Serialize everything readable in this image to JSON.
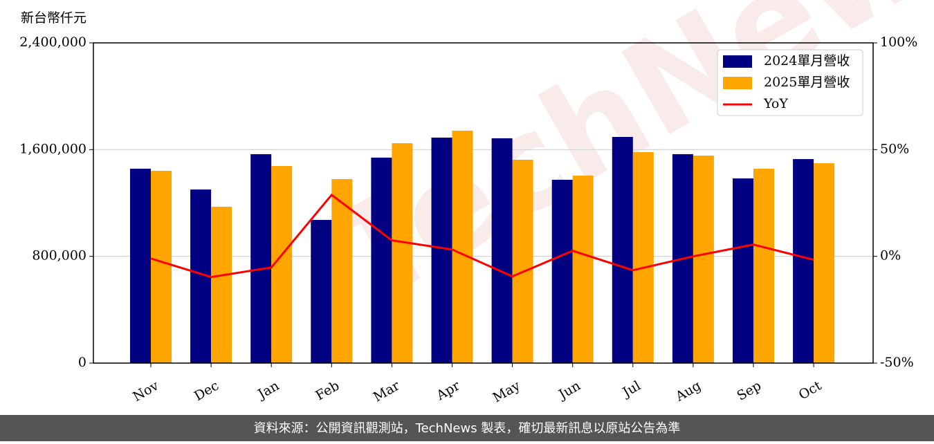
{
  "chart_data": {
    "type": "bar-line",
    "y_label": "新台幣仟元",
    "categories": [
      "Nov",
      "Dec",
      "Jan",
      "Feb",
      "Mar",
      "Apr",
      "May",
      "Jun",
      "Jul",
      "Aug",
      "Sep",
      "Oct"
    ],
    "series": [
      {
        "name": "2024單月營收",
        "color": "#000080",
        "type": "bar",
        "values": [
          1457000,
          1301000,
          1566000,
          1073000,
          1540000,
          1690000,
          1685000,
          1374000,
          1695000,
          1566000,
          1384000,
          1529000
        ]
      },
      {
        "name": "2025單月營收",
        "color": "#ffa500",
        "type": "bar",
        "values": [
          1441000,
          1172000,
          1477000,
          1379000,
          1648000,
          1742000,
          1524000,
          1405000,
          1581000,
          1555000,
          1457000,
          1498000
        ]
      },
      {
        "name": "YoY",
        "color": "#ff0000",
        "type": "line",
        "axis": "y2",
        "values": [
          -1.0,
          -9.7,
          -5.2,
          28.8,
          7.5,
          3.2,
          -9.4,
          2.6,
          -6.5,
          0,
          5.5,
          -1.6
        ]
      }
    ],
    "ylim": [
      0,
      2400000
    ],
    "yticks": [
      0,
      {
        "value": 800000,
        "label": "800,000"
      },
      {
        "value": 1600000,
        "label": "1,600,000"
      },
      {
        "value": 2400000,
        "label": "2,400,000"
      }
    ],
    "y2lim": [
      -50,
      100
    ],
    "y2ticks": [
      {
        "value": -50,
        "label": "-50%"
      },
      {
        "value": 0,
        "label": "0%"
      },
      {
        "value": 50,
        "label": "50%"
      },
      {
        "value": 100,
        "label": "100%"
      }
    ],
    "grid": true,
    "legend": "upper right",
    "watermark": "TechNews",
    "footer": "資料來源：公開資訊觀測站，TechNews 製表，確切最新訊息以原站公告為準"
  }
}
